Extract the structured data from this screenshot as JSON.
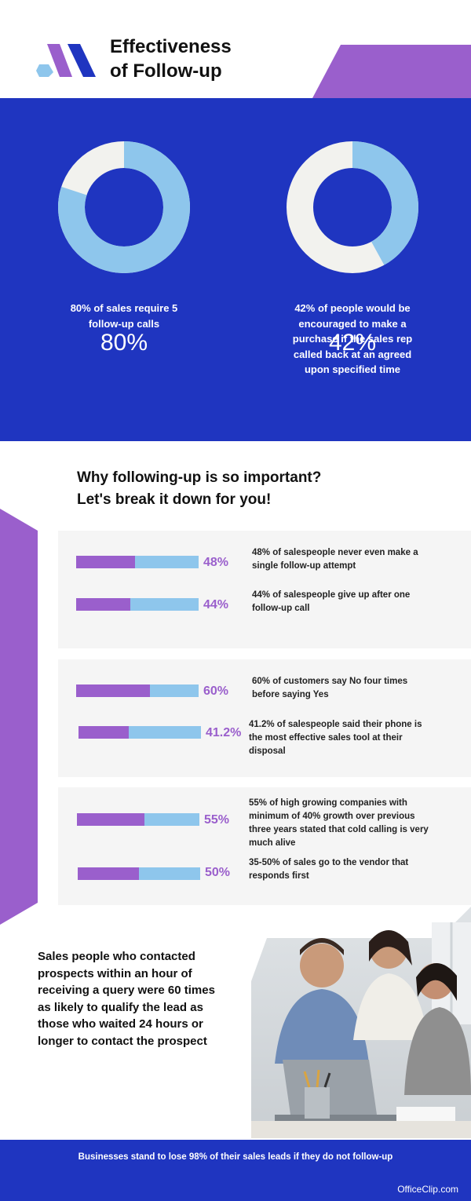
{
  "header": {
    "title_line1": "Effectiveness",
    "title_line2": "of Follow-up"
  },
  "colors": {
    "blue": "#1f35c0",
    "purple": "#9a5fcc",
    "light_blue": "#8ec6ec",
    "off_white": "#f2f2ee"
  },
  "stats": [
    {
      "pct_label": "80%",
      "value": 80,
      "caption": "80% of sales require 5 follow-up calls"
    },
    {
      "pct_label": "42%",
      "value": 42,
      "caption": "42% of people would be encouraged to make a purchase if the sales rep called back at an agreed upon specified time"
    }
  ],
  "section": {
    "title_line1": "Why following-up is so important?",
    "title_line2": "Let's break it down for you!"
  },
  "panels": [
    {
      "items": [
        {
          "pct_label": "48%",
          "value": 48,
          "desc": "48% of salespeople never even make a single follow-up attempt"
        },
        {
          "pct_label": "44%",
          "value": 44,
          "desc": "44% of salespeople give up after one follow-up call"
        }
      ]
    },
    {
      "items": [
        {
          "pct_label": "60%",
          "value": 60,
          "desc": "60% of customers say No four times before saying Yes"
        },
        {
          "pct_label": "41.2%",
          "value": 41.2,
          "desc": "41.2% of salespeople said their phone is the most effective sales tool at their disposal"
        }
      ]
    },
    {
      "items": [
        {
          "pct_label": "55%",
          "value": 55,
          "desc": "55% of high growing companies with minimum of 40% growth over previous three years stated that cold calling is very much alive"
        },
        {
          "pct_label": "50%",
          "value": 50,
          "desc": "35-50% of sales go to the vendor that responds first"
        }
      ]
    }
  ],
  "bottom": {
    "text": "Sales people who contacted prospects within an hour of receiving a query were 60 times as likely to qualify the lead as those who waited 24 hours or longer to contact the prospect"
  },
  "footer": {
    "text": "Businesses stand to lose 98% of their sales leads if they do not follow-up",
    "brand": "OfficeClip.com"
  }
}
